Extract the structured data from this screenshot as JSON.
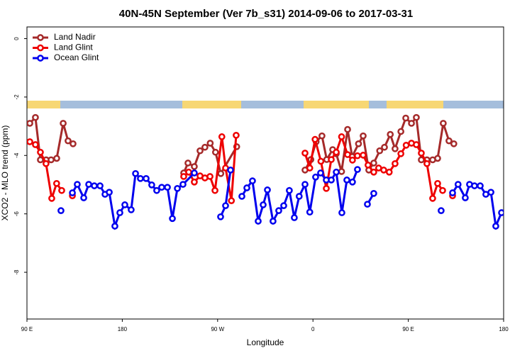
{
  "chart_data": {
    "type": "line",
    "title": "40N-45N September (Ver 7b_s31)   2014-09-06 to 2017-03-31",
    "x_label": "Longitude",
    "y_label": "XCO2 - MLO trend (ppm)",
    "xlim": [
      90,
      540
    ],
    "xticks": [
      {
        "value": 90,
        "label": "90 E"
      },
      {
        "value": 180,
        "label": "180"
      },
      {
        "value": 270,
        "label": "90 W"
      },
      {
        "value": 360,
        "label": "0"
      },
      {
        "value": 450,
        "label": "90 E"
      },
      {
        "value": 540,
        "label": "180"
      }
    ],
    "ylim": [
      -9.6,
      0.4
    ],
    "yticks": [
      0,
      -2,
      -4,
      -6,
      -8
    ],
    "legend": "top-left",
    "series": [
      {
        "name": "Land Nadir",
        "color": "#a52a2a",
        "x": [
          92.7,
          98,
          102.7,
          108.1,
          112.8,
          118.1,
          124.2,
          128.8,
          133.5,
          185,
          238,
          242,
          248,
          253.4,
          258,
          263,
          268,
          273,
          288,
          320,
          352.5,
          358,
          363,
          368.5,
          373,
          378.6,
          382,
          387,
          392.7,
          397,
          403,
          407.4,
          412.7,
          417.4,
          423,
          427.5,
          433,
          437.5,
          443,
          447.6,
          453,
          457.6,
          462.3,
          467.6,
          473,
          477.7,
          483,
          488.4,
          493
        ],
        "values": [
          -2.9,
          -2.7,
          -4.15,
          -4.15,
          -4.15,
          -4.1,
          -2.9,
          -3.5,
          -3.6,
          null,
          -4.6,
          -4.26,
          -4.38,
          -3.84,
          -3.72,
          -3.58,
          -3.89,
          -4.62,
          -3.7,
          null,
          -4.5,
          -4.14,
          -3.53,
          -3.33,
          -4.14,
          -3.8,
          -3.94,
          -4.55,
          -3.11,
          -4.04,
          -3.6,
          -3.33,
          -4.5,
          -4.26,
          -3.84,
          -3.72,
          -3.28,
          -3.77,
          -3.18,
          -2.72,
          -2.9,
          -2.7,
          -4.15,
          -4.15,
          -4.15,
          -4.1,
          -2.9,
          -3.5,
          -3.6
        ]
      },
      {
        "name": "Land Glint",
        "color": "#ee0000",
        "x": [
          92.7,
          98,
          102.7,
          108,
          113.4,
          118,
          122.8,
          128,
          132.9,
          185,
          238,
          242.7,
          248,
          253.4,
          258,
          262.8,
          267.5,
          274,
          277.5,
          283,
          287.5,
          320,
          352.5,
          357,
          362,
          367.5,
          372.6,
          377.3,
          382,
          387,
          392.7,
          397.3,
          402,
          407.4,
          412,
          417.4,
          422,
          426.8,
          432,
          437.5,
          443,
          448,
          453,
          457.6,
          462.3,
          467.6,
          473,
          477.7,
          482.4,
          487,
          491.8
        ],
        "values": [
          -3.53,
          -3.63,
          -3.89,
          -4.28,
          -5.47,
          -4.96,
          -5.2,
          null,
          -5.38,
          null,
          -4.72,
          -4.57,
          -4.91,
          -4.7,
          -4.77,
          -4.72,
          -5.2,
          -3.36,
          -4.43,
          -5.55,
          -3.31,
          null,
          -3.92,
          -4.43,
          -3.45,
          -4.2,
          -5.13,
          -4.14,
          -3.89,
          -3.36,
          -3.97,
          -4.16,
          -4.01,
          -3.99,
          -4.33,
          -4.57,
          -4.43,
          -4.5,
          -4.57,
          -4.28,
          -3.94,
          -3.65,
          -3.58,
          -3.63,
          -3.92,
          -4.28,
          -5.47,
          -4.96,
          -5.2,
          null,
          -5.38
        ]
      },
      {
        "name": "Ocean Glint",
        "color": "#0000ee",
        "x": [
          122.1,
          127,
          132.9,
          137.5,
          143.6,
          148.3,
          153.6,
          159,
          163.7,
          167.7,
          173,
          177.7,
          182.4,
          188.4,
          192.5,
          197.1,
          202.5,
          207.8,
          212.5,
          217.2,
          222.6,
          227.3,
          232,
          237.3,
          248,
          260,
          272.8,
          277.5,
          282.2,
          288,
          292.9,
          297.6,
          302.9,
          308.3,
          313,
          317,
          322.3,
          327.7,
          332.4,
          337.7,
          342.4,
          347,
          352.5,
          357,
          362.5,
          367.2,
          372.6,
          377.3,
          382,
          387.3,
          392,
          397.3,
          402,
          407,
          411.4,
          417.4,
          450,
          481,
          486,
          491.8,
          497,
          503.8,
          507.8,
          512.5,
          517.9,
          523.2,
          528,
          532.6,
          538
        ],
        "values": [
          -5.89,
          null,
          -5.28,
          -4.99,
          -5.45,
          -4.99,
          -5.04,
          -5.04,
          -5.33,
          -5.26,
          -6.42,
          -5.96,
          -5.69,
          -5.86,
          -4.62,
          -4.79,
          -4.79,
          -5.01,
          -5.2,
          -5.09,
          -5.09,
          -6.16,
          -5.13,
          -4.99,
          -4.6,
          null,
          -6.1,
          -5.72,
          -4.5,
          null,
          -5.4,
          -5.11,
          -4.87,
          -6.25,
          -5.69,
          -5.18,
          -6.25,
          -5.89,
          -5.72,
          -5.2,
          -6.13,
          -5.4,
          -4.99,
          -5.94,
          -4.74,
          -4.6,
          -4.84,
          -4.84,
          -4.57,
          -5.96,
          -4.84,
          -4.91,
          -4.48,
          null,
          -5.67,
          -5.3,
          null,
          -5.89,
          null,
          -5.28,
          -4.99,
          -5.45,
          -4.99,
          -5.04,
          -5.04,
          -5.33,
          -5.26,
          -6.42,
          -5.96
        ]
      }
    ]
  }
}
